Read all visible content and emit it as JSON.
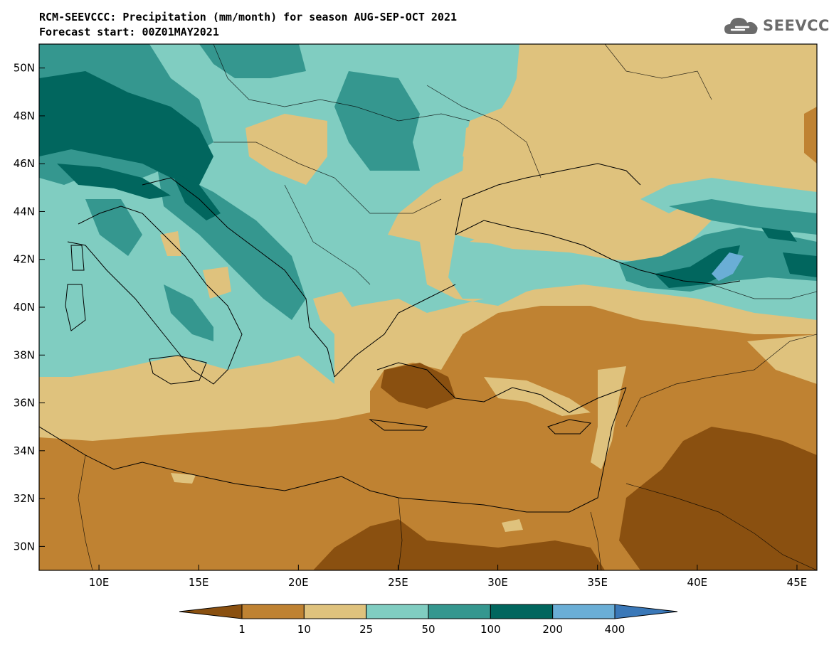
{
  "header": {
    "title_line1": "RCM-SEEVCCC: Precipitation (mm/month) for season AUG-SEP-OCT 2021",
    "title_line2": "Forecast start: 00Z01MAY2021"
  },
  "logo": {
    "text": "SEEVCCC",
    "icon": "cloud-logo-icon"
  },
  "map": {
    "lat_labels": [
      "50N",
      "48N",
      "46N",
      "44N",
      "42N",
      "40N",
      "38N",
      "36N",
      "34N",
      "32N",
      "30N"
    ],
    "lon_labels": [
      "10E",
      "15E",
      "20E",
      "25E",
      "30E",
      "35E",
      "40E",
      "45E"
    ],
    "lat_range": [
      29,
      51
    ],
    "lon_range": [
      7,
      46
    ],
    "region": "Southeast Europe, Mediterranean, Middle East"
  },
  "colorbar": {
    "labels": [
      "1",
      "10",
      "25",
      "50",
      "100",
      "200",
      "400"
    ],
    "colors": [
      "#8a5010",
      "#bf8232",
      "#dfc27d",
      "#80cdc1",
      "#35978f",
      "#01665e",
      "#6aaed6",
      "#3a78b8"
    ]
  }
}
